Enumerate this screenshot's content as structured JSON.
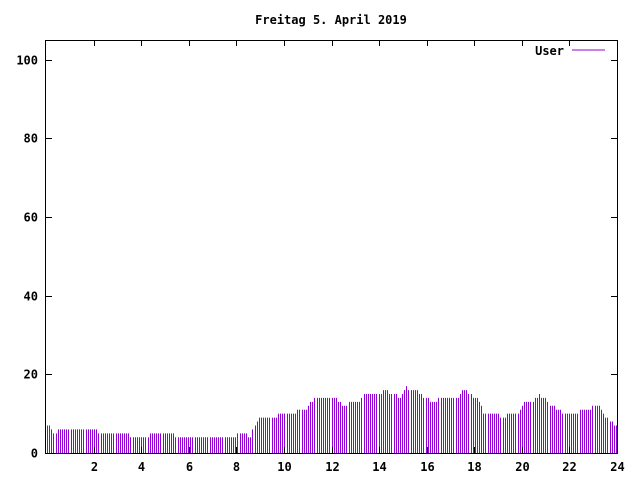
{
  "chart_data": {
    "type": "bar",
    "title": "Freitag 5. April 2019",
    "xlabel": "",
    "ylabel": "",
    "xlim": [
      0,
      24
    ],
    "ylim": [
      0,
      105
    ],
    "x_ticks": [
      2,
      4,
      6,
      8,
      10,
      12,
      14,
      16,
      18,
      20,
      22,
      24
    ],
    "x_tick_labels": [
      "2",
      "4",
      "6",
      "8",
      "10",
      "12",
      "14",
      "16",
      "18",
      "20",
      "22",
      "24"
    ],
    "y_ticks": [
      0,
      20,
      40,
      60,
      80,
      100
    ],
    "y_tick_labels": [
      "0",
      "20",
      "40",
      "60",
      "80",
      "100"
    ],
    "grid": false,
    "legend_position": "top-right",
    "sample_interval_hours": 0.0833,
    "series": [
      {
        "name": "User",
        "color": "#9400d3",
        "values": [
          7,
          7,
          6,
          5,
          5,
          6,
          6,
          6,
          6,
          6,
          6,
          6,
          6,
          6,
          6,
          6,
          6,
          6,
          6,
          6,
          6,
          6,
          6,
          6,
          5,
          5,
          5,
          5,
          5,
          5,
          5,
          5,
          5,
          5,
          5,
          5,
          5,
          5,
          5,
          4,
          4,
          4,
          4,
          4,
          4,
          4,
          4,
          4,
          5,
          5,
          5,
          5,
          5,
          5,
          5,
          5,
          5,
          5,
          5,
          5,
          4,
          4,
          4,
          4,
          4,
          4,
          4,
          4,
          4,
          4,
          4,
          4,
          4,
          4,
          4,
          4,
          4,
          4,
          4,
          4,
          4,
          4,
          4,
          4,
          4,
          4,
          4,
          4,
          4,
          5,
          5,
          5,
          5,
          5,
          4,
          4,
          6,
          7,
          8,
          9,
          9,
          9,
          9,
          9,
          9,
          9,
          9,
          9,
          10,
          10,
          10,
          10,
          10,
          10,
          10,
          10,
          10,
          11,
          11,
          11,
          11,
          11,
          12,
          13,
          13,
          14,
          14,
          14,
          14,
          14,
          14,
          14,
          14,
          14,
          14,
          14,
          13,
          13,
          12,
          12,
          12,
          13,
          13,
          13,
          13,
          13,
          13,
          14,
          15,
          15,
          15,
          15,
          15,
          15,
          15,
          15,
          15,
          16,
          16,
          16,
          15,
          15,
          15,
          15,
          14,
          14,
          15,
          16,
          17,
          16,
          16,
          16,
          16,
          16,
          15,
          15,
          14,
          14,
          14,
          13,
          13,
          13,
          13,
          14,
          14,
          14,
          14,
          14,
          14,
          14,
          14,
          14,
          14,
          15,
          16,
          16,
          16,
          15,
          15,
          14,
          14,
          14,
          13,
          12,
          10,
          10,
          10,
          10,
          10,
          10,
          10,
          10,
          9,
          9,
          9,
          10,
          10,
          10,
          10,
          10,
          10,
          11,
          12,
          13,
          13,
          13,
          13,
          13,
          14,
          14,
          15,
          14,
          14,
          14,
          13,
          12,
          12,
          12,
          11,
          11,
          11,
          10,
          10,
          10,
          10,
          10,
          10,
          10,
          10,
          11,
          11,
          11,
          11,
          11,
          11,
          12,
          12,
          12,
          12,
          11,
          10,
          9,
          9,
          8,
          8,
          7,
          7
        ]
      }
    ]
  }
}
